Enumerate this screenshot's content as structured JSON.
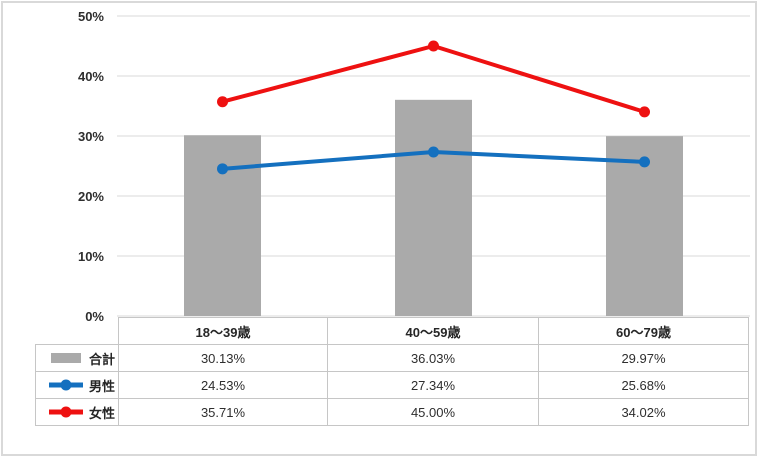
{
  "panel": {
    "background": "#ffffff",
    "border_color": "#d9d9d9"
  },
  "chart_data": {
    "type": "combo",
    "title": "",
    "xlabel": "",
    "ylabel": "",
    "categories": [
      "18〜39歳",
      "40〜59歳",
      "60〜79歳"
    ],
    "series": [
      {
        "id": "total",
        "name": "合計",
        "kind": "bar",
        "color": "#aaaaaa",
        "values": [
          30.13,
          36.03,
          29.97
        ],
        "labels": [
          "30.13%",
          "36.03%",
          "29.97%"
        ]
      },
      {
        "id": "male",
        "name": "男性",
        "kind": "line",
        "color": "#1470bf",
        "values": [
          24.53,
          27.34,
          25.68
        ],
        "labels": [
          "24.53%",
          "27.34%",
          "25.68%"
        ]
      },
      {
        "id": "female",
        "name": "女性",
        "kind": "line",
        "color": "#ee1111",
        "values": [
          35.71,
          45.0,
          34.02
        ],
        "labels": [
          "35.71%",
          "45.00%",
          "34.02%"
        ]
      }
    ],
    "ylim": [
      0,
      50
    ],
    "y_ticks": [
      {
        "value": 0,
        "label": "0%"
      },
      {
        "value": 10,
        "label": "10%"
      },
      {
        "value": 20,
        "label": "20%"
      },
      {
        "value": 30,
        "label": "30%"
      },
      {
        "value": 40,
        "label": "40%"
      },
      {
        "value": 50,
        "label": "50%"
      }
    ],
    "grid": true,
    "gridline_color": "#d9d9d9",
    "axis_text_color": "#2e2e2e",
    "table_border_color": "#c6c6c6",
    "legend_position": "table-left"
  }
}
